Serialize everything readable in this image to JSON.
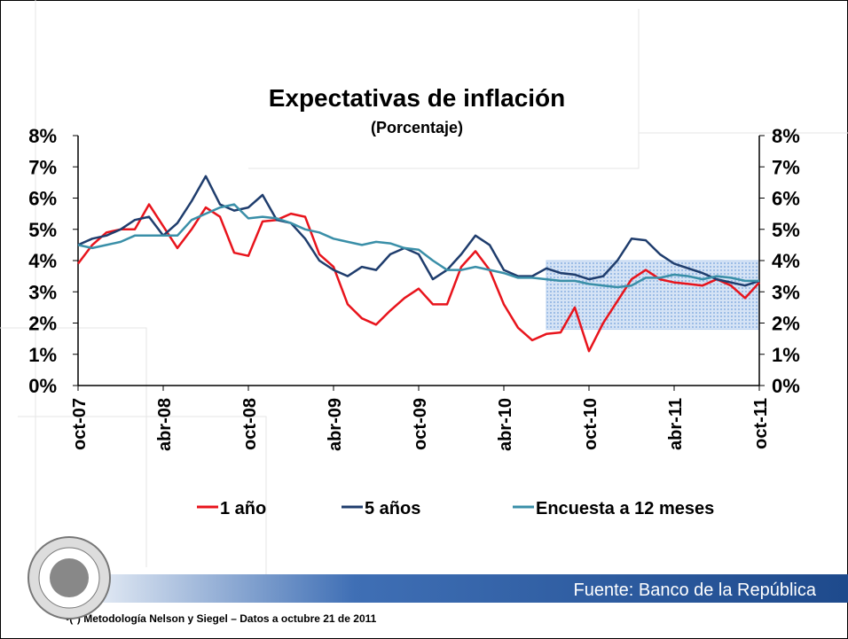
{
  "chart_data": {
    "type": "line",
    "title": "Expectativas de inflación",
    "subtitle": "(Porcentaje)",
    "categories": [
      "oct-07",
      null,
      null,
      null,
      null,
      null,
      "abr-08",
      null,
      null,
      null,
      null,
      null,
      "oct-08",
      null,
      null,
      null,
      null,
      null,
      "abr-09",
      null,
      null,
      null,
      null,
      null,
      "oct-09",
      null,
      null,
      null,
      null,
      null,
      "abr-10",
      null,
      null,
      null,
      null,
      null,
      "oct-10",
      null,
      null,
      null,
      null,
      null,
      "abr-11",
      null,
      null,
      null,
      null,
      null,
      "oct-11"
    ],
    "series": [
      {
        "name": "1 año",
        "color": "#e8141c",
        "values": [
          3.9,
          4.5,
          4.9,
          5.0,
          5.0,
          5.8,
          5.1,
          4.4,
          5.0,
          5.7,
          5.4,
          4.25,
          4.15,
          5.25,
          5.3,
          5.5,
          5.4,
          4.2,
          3.8,
          2.6,
          2.15,
          1.95,
          2.4,
          2.8,
          3.1,
          2.6,
          2.6,
          3.8,
          4.3,
          3.7,
          2.6,
          1.85,
          1.45,
          1.65,
          1.7,
          2.5,
          1.1,
          2.0,
          2.7,
          3.4,
          3.7,
          3.4,
          3.3,
          3.25,
          3.2,
          3.4,
          3.2,
          2.8,
          3.3
        ]
      },
      {
        "name": "5 años",
        "color": "#1f3d6d",
        "values": [
          4.5,
          4.7,
          4.8,
          5.0,
          5.3,
          5.4,
          4.8,
          5.2,
          5.9,
          6.7,
          5.8,
          5.6,
          5.7,
          6.1,
          5.3,
          5.2,
          4.7,
          4.0,
          3.7,
          3.5,
          3.8,
          3.7,
          4.2,
          4.4,
          4.2,
          3.4,
          3.7,
          4.2,
          4.8,
          4.5,
          3.7,
          3.5,
          3.5,
          3.75,
          3.6,
          3.55,
          3.4,
          3.5,
          4.0,
          4.7,
          4.65,
          4.2,
          3.9,
          3.75,
          3.6,
          3.4,
          3.3,
          3.2,
          3.35
        ]
      },
      {
        "name": "Encuesta a 12 meses",
        "color": "#3a8fa8",
        "values": [
          4.5,
          4.4,
          4.5,
          4.6,
          4.8,
          4.8,
          4.8,
          4.8,
          5.3,
          5.5,
          5.7,
          5.8,
          5.35,
          5.4,
          5.35,
          5.2,
          5.0,
          4.9,
          4.7,
          4.6,
          4.5,
          4.6,
          4.55,
          4.4,
          4.35,
          4.0,
          3.7,
          3.7,
          3.8,
          3.7,
          3.6,
          3.45,
          3.45,
          3.4,
          3.35,
          3.35,
          3.25,
          3.2,
          3.15,
          3.2,
          3.45,
          3.45,
          3.55,
          3.5,
          3.4,
          3.5,
          3.45,
          3.35,
          3.35
        ]
      }
    ],
    "band": {
      "range": [
        1.8,
        4.0
      ],
      "start_index": 33,
      "color": "#b9d1ef"
    },
    "ylim": [
      0,
      8
    ],
    "yticks": [
      {
        "value": 0,
        "label": "0%"
      },
      {
        "value": 1,
        "label": "1%"
      },
      {
        "value": 2,
        "label": "2%"
      },
      {
        "value": 3,
        "label": "3%"
      },
      {
        "value": 4,
        "label": "4%"
      },
      {
        "value": 5,
        "label": "5%"
      },
      {
        "value": 6,
        "label": "6%"
      },
      {
        "value": 7,
        "label": "7%"
      },
      {
        "value": 8,
        "label": "8%"
      }
    ],
    "y2lim": [
      0,
      8
    ],
    "y2ticks": [
      {
        "value": 0,
        "label": "0%"
      },
      {
        "value": 1,
        "label": "1%"
      },
      {
        "value": 2,
        "label": "2%"
      },
      {
        "value": 3,
        "label": "3%"
      },
      {
        "value": 4,
        "label": "4%"
      },
      {
        "value": 5,
        "label": "5%"
      },
      {
        "value": 6,
        "label": "6%"
      },
      {
        "value": 7,
        "label": "7%"
      },
      {
        "value": 8,
        "label": "8%"
      }
    ],
    "legend": "bottom",
    "source": "Fuente: Banco de la República",
    "footnote": "•(*) Metodología Nelson y Siegel – Datos a octubre 21 de 2011"
  }
}
